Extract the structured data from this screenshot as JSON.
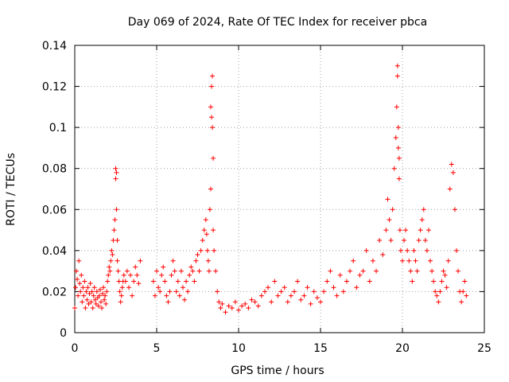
{
  "chart_data": {
    "type": "scatter",
    "title": "Day 069 of 2024, Rate Of TEC Index for receiver pbca",
    "xlabel": "GPS time / hours",
    "ylabel": "ROTI / TECUs",
    "xlim": [
      0,
      25
    ],
    "ylim": [
      0,
      0.14
    ],
    "xticks": [
      0,
      5,
      10,
      15,
      20,
      25
    ],
    "xtick_labels": [
      "0",
      "5",
      "10",
      "15",
      "20",
      "25"
    ],
    "yticks": [
      0,
      0.02,
      0.04,
      0.06,
      0.08,
      0.1,
      0.12,
      0.14
    ],
    "ytick_labels": [
      "0",
      "0.02",
      "0.04",
      "0.06",
      "0.08",
      "0.1",
      "0.12",
      "0.14"
    ],
    "grid": true,
    "marker": "+",
    "color": "#ff0000",
    "series": [
      {
        "name": "ROTI",
        "x": [
          0.0,
          0.05,
          0.1,
          0.15,
          0.2,
          0.25,
          0.3,
          0.35,
          0.4,
          0.45,
          0.5,
          0.55,
          0.6,
          0.65,
          0.7,
          0.75,
          0.8,
          0.85,
          0.9,
          0.95,
          1.0,
          1.05,
          1.1,
          1.15,
          1.2,
          1.25,
          1.3,
          1.35,
          1.4,
          1.45,
          1.5,
          1.55,
          1.6,
          1.65,
          1.7,
          1.75,
          1.8,
          1.85,
          1.9,
          1.95,
          2.0,
          2.05,
          2.1,
          2.15,
          2.2,
          2.25,
          2.3,
          2.35,
          2.4,
          2.45,
          2.5,
          2.5,
          2.55,
          2.55,
          2.6,
          2.6,
          2.65,
          2.7,
          2.75,
          2.8,
          2.85,
          2.9,
          2.95,
          3.0,
          3.1,
          3.2,
          3.3,
          3.4,
          3.5,
          3.6,
          3.7,
          3.8,
          3.9,
          4.0,
          4.8,
          4.9,
          5.0,
          5.1,
          5.2,
          5.3,
          5.4,
          5.5,
          5.6,
          5.7,
          5.8,
          5.9,
          6.0,
          6.1,
          6.2,
          6.3,
          6.4,
          6.5,
          6.6,
          6.7,
          6.8,
          6.9,
          7.0,
          7.1,
          7.2,
          7.3,
          7.4,
          7.5,
          7.6,
          7.7,
          7.8,
          7.9,
          8.0,
          8.05,
          8.1,
          8.15,
          8.2,
          8.25,
          8.3,
          8.3,
          8.35,
          8.35,
          8.4,
          8.4,
          8.45,
          8.45,
          8.5,
          8.6,
          8.7,
          8.8,
          8.9,
          9.0,
          9.2,
          9.4,
          9.6,
          9.8,
          10.0,
          10.2,
          10.4,
          10.6,
          10.8,
          11.0,
          11.2,
          11.4,
          11.6,
          11.8,
          12.0,
          12.2,
          12.4,
          12.6,
          12.8,
          13.0,
          13.2,
          13.4,
          13.6,
          13.8,
          14.0,
          14.2,
          14.4,
          14.6,
          14.8,
          15.0,
          15.2,
          15.4,
          15.6,
          15.8,
          16.0,
          16.2,
          16.4,
          16.6,
          16.8,
          17.0,
          17.2,
          17.4,
          17.6,
          17.8,
          18.0,
          18.2,
          18.4,
          18.6,
          18.8,
          19.0,
          19.1,
          19.2,
          19.3,
          19.4,
          19.5,
          19.6,
          19.65,
          19.7,
          19.7,
          19.75,
          19.75,
          19.8,
          19.8,
          19.85,
          19.9,
          20.0,
          20.1,
          20.2,
          20.3,
          20.4,
          20.5,
          20.6,
          20.7,
          20.8,
          20.9,
          21.0,
          21.1,
          21.2,
          21.3,
          21.4,
          21.5,
          21.6,
          21.7,
          21.8,
          21.9,
          22.0,
          22.1,
          22.2,
          22.3,
          22.4,
          22.5,
          22.6,
          22.7,
          22.8,
          22.9,
          23.0,
          23.1,
          23.2,
          23.3,
          23.4,
          23.5,
          23.6,
          23.7,
          23.8,
          23.9
        ],
        "y": [
          0.012,
          0.022,
          0.03,
          0.026,
          0.018,
          0.035,
          0.024,
          0.02,
          0.028,
          0.015,
          0.022,
          0.018,
          0.025,
          0.012,
          0.02,
          0.016,
          0.022,
          0.014,
          0.019,
          0.024,
          0.015,
          0.02,
          0.012,
          0.018,
          0.022,
          0.016,
          0.014,
          0.02,
          0.017,
          0.013,
          0.018,
          0.021,
          0.015,
          0.012,
          0.019,
          0.022,
          0.016,
          0.018,
          0.014,
          0.02,
          0.025,
          0.028,
          0.032,
          0.03,
          0.035,
          0.04,
          0.038,
          0.045,
          0.05,
          0.055,
          0.08,
          0.075,
          0.078,
          0.06,
          0.045,
          0.035,
          0.03,
          0.025,
          0.02,
          0.015,
          0.018,
          0.022,
          0.025,
          0.028,
          0.025,
          0.03,
          0.022,
          0.028,
          0.018,
          0.025,
          0.032,
          0.028,
          0.024,
          0.035,
          0.025,
          0.018,
          0.03,
          0.022,
          0.02,
          0.028,
          0.032,
          0.025,
          0.018,
          0.015,
          0.02,
          0.028,
          0.035,
          0.03,
          0.02,
          0.025,
          0.018,
          0.03,
          0.022,
          0.016,
          0.025,
          0.02,
          0.028,
          0.032,
          0.03,
          0.025,
          0.035,
          0.038,
          0.03,
          0.04,
          0.045,
          0.05,
          0.055,
          0.048,
          0.04,
          0.035,
          0.03,
          0.06,
          0.07,
          0.11,
          0.105,
          0.12,
          0.125,
          0.1,
          0.085,
          0.05,
          0.04,
          0.03,
          0.02,
          0.015,
          0.012,
          0.014,
          0.01,
          0.013,
          0.012,
          0.015,
          0.011,
          0.013,
          0.014,
          0.012,
          0.016,
          0.015,
          0.013,
          0.018,
          0.02,
          0.022,
          0.015,
          0.025,
          0.018,
          0.02,
          0.022,
          0.015,
          0.018,
          0.02,
          0.025,
          0.016,
          0.018,
          0.022,
          0.014,
          0.02,
          0.017,
          0.015,
          0.02,
          0.025,
          0.03,
          0.022,
          0.018,
          0.028,
          0.02,
          0.025,
          0.03,
          0.035,
          0.022,
          0.028,
          0.03,
          0.04,
          0.025,
          0.035,
          0.03,
          0.045,
          0.038,
          0.05,
          0.065,
          0.055,
          0.045,
          0.06,
          0.08,
          0.095,
          0.11,
          0.13,
          0.125,
          0.1,
          0.09,
          0.085,
          0.075,
          0.05,
          0.04,
          0.035,
          0.045,
          0.05,
          0.04,
          0.035,
          0.03,
          0.025,
          0.04,
          0.035,
          0.03,
          0.045,
          0.05,
          0.055,
          0.06,
          0.045,
          0.04,
          0.05,
          0.035,
          0.03,
          0.025,
          0.02,
          0.018,
          0.015,
          0.02,
          0.025,
          0.03,
          0.028,
          0.022,
          0.035,
          0.07,
          0.082,
          0.078,
          0.06,
          0.04,
          0.03,
          0.02,
          0.015,
          0.02,
          0.025,
          0.018
        ]
      }
    ]
  }
}
